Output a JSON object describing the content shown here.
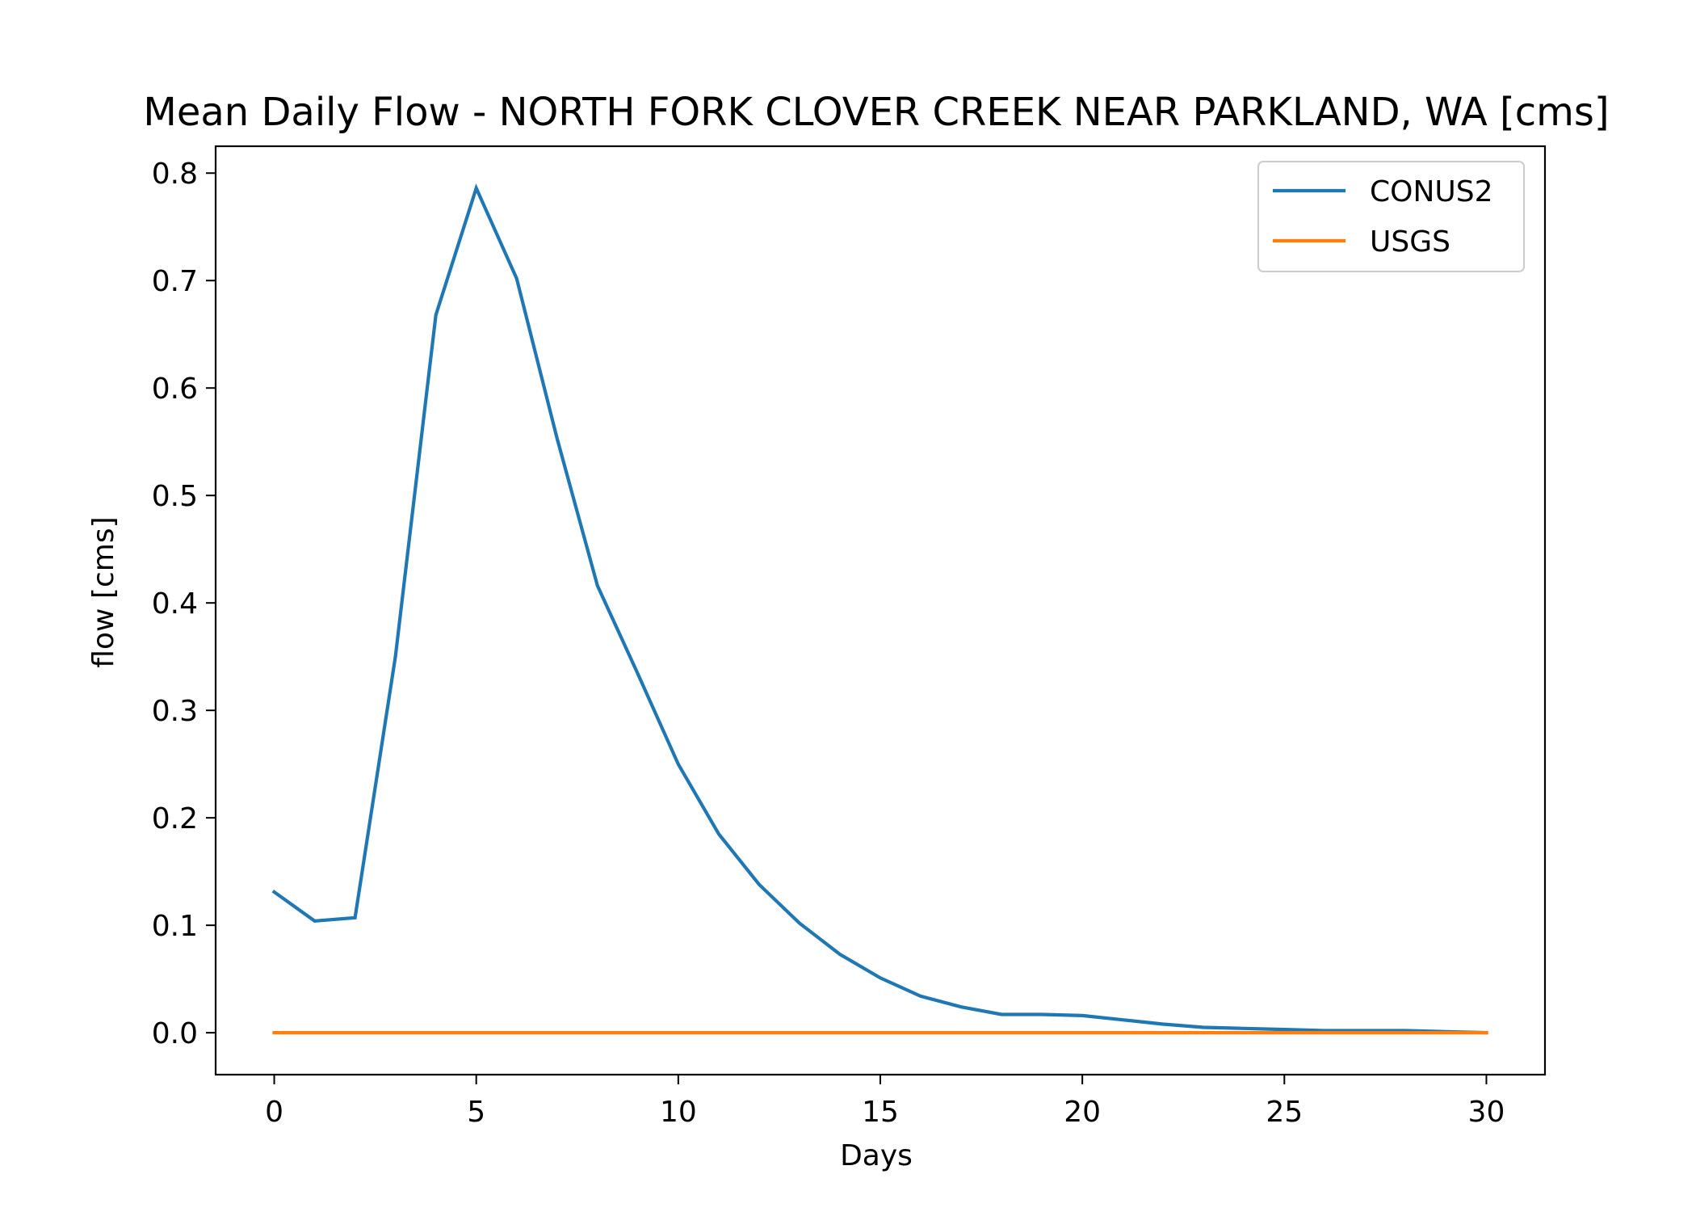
{
  "chart_data": {
    "type": "line",
    "title": "Mean Daily Flow - NORTH FORK CLOVER CREEK NEAR PARKLAND, WA [cms]",
    "xlabel": "Days",
    "ylabel": "flow [cms]",
    "xlim": [
      -1.45,
      31.45
    ],
    "ylim": [
      -0.039,
      0.825
    ],
    "xticks": [
      0,
      5,
      10,
      15,
      20,
      25,
      30
    ],
    "yticks": [
      0.0,
      0.1,
      0.2,
      0.3,
      0.4,
      0.5,
      0.6,
      0.7,
      0.8
    ],
    "grid": false,
    "legend_position": "top-right",
    "x": [
      0,
      1,
      2,
      3,
      4,
      5,
      6,
      7,
      8,
      9,
      10,
      11,
      12,
      13,
      14,
      15,
      16,
      17,
      18,
      19,
      20,
      21,
      22,
      23,
      24,
      25,
      26,
      27,
      28,
      29,
      30
    ],
    "series": [
      {
        "name": "CONUS2",
        "color": "#1f77b4",
        "values": [
          0.131,
          0.104,
          0.107,
          0.35,
          0.668,
          0.786,
          0.702,
          0.553,
          0.416,
          0.334,
          0.25,
          0.185,
          0.138,
          0.102,
          0.073,
          0.051,
          0.034,
          0.024,
          0.017,
          0.017,
          0.016,
          0.012,
          0.008,
          0.005,
          0.004,
          0.003,
          0.002,
          0.002,
          0.002,
          0.001,
          0.0
        ]
      },
      {
        "name": "USGS",
        "color": "#ff7f0e",
        "values": [
          0,
          0,
          0,
          0,
          0,
          0,
          0,
          0,
          0,
          0,
          0,
          0,
          0,
          0,
          0,
          0,
          0,
          0,
          0,
          0,
          0,
          0,
          0,
          0,
          0,
          0,
          0,
          0,
          0,
          0,
          0
        ]
      }
    ]
  }
}
